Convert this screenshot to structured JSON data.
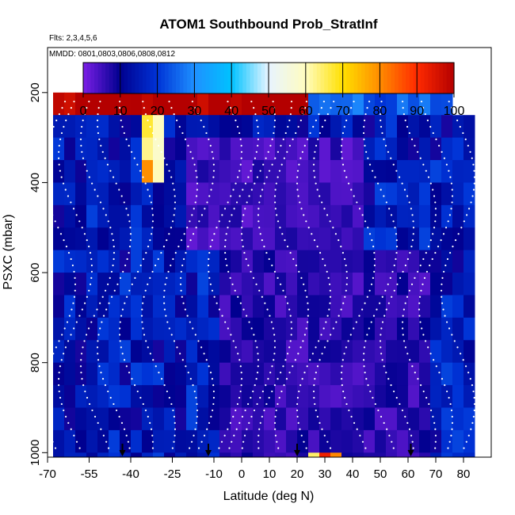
{
  "chart_data": {
    "type": "heatmap",
    "title": "ATOM1 Southbound Prob_StratInf",
    "notes": {
      "flights": "Flts: 2,3,4,5,6",
      "dates": "MMDD: 0801,0803,0806,0808,0812"
    },
    "xlabel": "Latitude (deg N)",
    "ylabel": "PSXC (mbar)",
    "xlim": [
      -70,
      90
    ],
    "ylim": [
      1010,
      100
    ],
    "x_ticks": [
      -70,
      -55,
      -40,
      -25,
      -10,
      0,
      10,
      20,
      30,
      40,
      50,
      60,
      70,
      80
    ],
    "y_ticks": [
      200,
      400,
      600,
      800,
      1000
    ],
    "colorbar": {
      "range": [
        0,
        100
      ],
      "ticks": [
        0,
        10,
        20,
        30,
        40,
        50,
        60,
        70,
        80,
        90,
        100
      ],
      "colors": [
        "#7b1fe6",
        "#00008f",
        "#0033d6",
        "#1e90ff",
        "#00c3ff",
        "#e8f4ff",
        "#fffcc0",
        "#ffe000",
        "#ff8c00",
        "#ff2a00",
        "#b40000"
      ]
    },
    "profile_markers_latitude": [
      -43,
      -12,
      20,
      61
    ],
    "grid_lat_bins": [
      -68,
      -64,
      -60,
      -56,
      -52,
      -48,
      -44,
      -40,
      -36,
      -32,
      -28,
      -24,
      -20,
      -16,
      -12,
      -8,
      -4,
      0,
      4,
      8,
      12,
      16,
      20,
      24,
      28,
      32,
      36,
      40,
      44,
      48,
      52,
      56,
      60,
      64,
      68,
      72,
      76,
      80
    ],
    "grid_pressure_bins": [
      150,
      200,
      250,
      300,
      350,
      400,
      450,
      500,
      550,
      600,
      650,
      700,
      750,
      800,
      850,
      900,
      950,
      1000
    ],
    "cells": [
      [
        null,
        null,
        null,
        null,
        null,
        null,
        null,
        null,
        null,
        null,
        null,
        null,
        null,
        null,
        null,
        null,
        null,
        null,
        null,
        null,
        null,
        null,
        null,
        null,
        null,
        null,
        null,
        null,
        null,
        null,
        null,
        null,
        null,
        null,
        null,
        null,
        null,
        null
      ],
      [
        null,
        null,
        null,
        null,
        null,
        null,
        null,
        null,
        null,
        null,
        null,
        null,
        null,
        null,
        null,
        null,
        null,
        null,
        null,
        null,
        null,
        null,
        null,
        null,
        null,
        null,
        null,
        null,
        null,
        null,
        null,
        null,
        null,
        null,
        null,
        null,
        null,
        null
      ],
      [
        null,
        null,
        null,
        null,
        null,
        null,
        null,
        null,
        null,
        null,
        null,
        null,
        null,
        null,
        null,
        null,
        null,
        null,
        null,
        null,
        null,
        null,
        null,
        null,
        null,
        null,
        null,
        null,
        null,
        null,
        null,
        null,
        null,
        null,
        null,
        null,
        null,
        null
      ],
      [
        null,
        null,
        null,
        null,
        null,
        null,
        null,
        null,
        null,
        null,
        null,
        null,
        null,
        null,
        null,
        null,
        null,
        null,
        null,
        null,
        null,
        null,
        null,
        null,
        null,
        null,
        null,
        null,
        null,
        null,
        null,
        null,
        null,
        null,
        null,
        null,
        null,
        null
      ],
      [
        null,
        null,
        null,
        null,
        null,
        null,
        null,
        null,
        null,
        null,
        null,
        null,
        null,
        null,
        null,
        null,
        null,
        null,
        null,
        null,
        null,
        null,
        null,
        null,
        null,
        null,
        null,
        null,
        null,
        null,
        null,
        null,
        null,
        null,
        null,
        null,
        null,
        null
      ],
      [
        null,
        null,
        null,
        null,
        null,
        null,
        null,
        null,
        null,
        null,
        null,
        null,
        null,
        null,
        null,
        null,
        null,
        null,
        null,
        null,
        null,
        null,
        null,
        null,
        null,
        null,
        null,
        null,
        null,
        null,
        null,
        null,
        null,
        null,
        null,
        null,
        null,
        null
      ],
      [
        null,
        null,
        null,
        null,
        null,
        null,
        null,
        null,
        null,
        null,
        null,
        null,
        null,
        null,
        null,
        null,
        null,
        null,
        null,
        null,
        null,
        null,
        null,
        null,
        null,
        null,
        null,
        null,
        null,
        null,
        null,
        null,
        null,
        null,
        null,
        null,
        null,
        null
      ],
      [
        null,
        null,
        null,
        null,
        null,
        null,
        null,
        null,
        null,
        null,
        null,
        null,
        null,
        null,
        null,
        null,
        null,
        null,
        null,
        null,
        null,
        null,
        null,
        null,
        null,
        null,
        null,
        null,
        null,
        null,
        null,
        null,
        null,
        null,
        null,
        null,
        null,
        null
      ],
      [
        null,
        null,
        null,
        null,
        null,
        null,
        null,
        null,
        null,
        null,
        null,
        null,
        null,
        null,
        null,
        null,
        null,
        null,
        null,
        null,
        null,
        null,
        null,
        null,
        null,
        null,
        null,
        null,
        null,
        null,
        null,
        null,
        null,
        null,
        null,
        null,
        null,
        null
      ],
      [
        null,
        null,
        null,
        null,
        null,
        null,
        null,
        null,
        null,
        null,
        null,
        null,
        null,
        null,
        null,
        null,
        null,
        null,
        null,
        null,
        null,
        null,
        null,
        null,
        null,
        null,
        null,
        null,
        null,
        null,
        null,
        null,
        null,
        null,
        null,
        null,
        null,
        null
      ],
      [
        null,
        null,
        null,
        null,
        null,
        null,
        null,
        null,
        null,
        null,
        null,
        null,
        null,
        null,
        null,
        null,
        null,
        null,
        null,
        null,
        null,
        null,
        null,
        null,
        null,
        null,
        null,
        null,
        null,
        null,
        null,
        null,
        null,
        null,
        null,
        null,
        null,
        null
      ],
      [
        null,
        null,
        null,
        null,
        null,
        null,
        null,
        null,
        null,
        null,
        null,
        null,
        null,
        null,
        null,
        null,
        null,
        null,
        null,
        null,
        null,
        null,
        null,
        null,
        null,
        null,
        null,
        null,
        null,
        null,
        null,
        null,
        null,
        null,
        null,
        null,
        null,
        null
      ],
      [
        null,
        null,
        null,
        null,
        null,
        null,
        null,
        null,
        null,
        null,
        null,
        null,
        null,
        null,
        null,
        null,
        null,
        null,
        null,
        null,
        null,
        null,
        null,
        null,
        null,
        null,
        null,
        null,
        null,
        null,
        null,
        null,
        null,
        null,
        null,
        null,
        null,
        null
      ],
      [
        null,
        null,
        null,
        null,
        null,
        null,
        null,
        null,
        null,
        null,
        null,
        null,
        null,
        null,
        null,
        null,
        null,
        null,
        null,
        null,
        null,
        null,
        null,
        null,
        null,
        null,
        null,
        null,
        null,
        null,
        null,
        null,
        null,
        null,
        null,
        null,
        null,
        null
      ],
      [
        null,
        null,
        null,
        null,
        null,
        null,
        null,
        null,
        null,
        null,
        null,
        null,
        null,
        null,
        null,
        null,
        null,
        null,
        null,
        null,
        null,
        null,
        null,
        null,
        null,
        null,
        null,
        null,
        null,
        null,
        null,
        null,
        null,
        null,
        null,
        null,
        null,
        null
      ],
      [
        null,
        null,
        null,
        null,
        null,
        null,
        null,
        null,
        null,
        null,
        null,
        null,
        null,
        null,
        null,
        null,
        null,
        null,
        null,
        null,
        null,
        null,
        null,
        null,
        null,
        null,
        null,
        null,
        null,
        null,
        null,
        null,
        null,
        null,
        null,
        null,
        null,
        null
      ],
      [
        null,
        null,
        null,
        null,
        null,
        null,
        null,
        null,
        null,
        null,
        null,
        null,
        null,
        null,
        null,
        null,
        null,
        null,
        null,
        null,
        null,
        null,
        null,
        null,
        null,
        null,
        null,
        null,
        null,
        null,
        null,
        null,
        null,
        null,
        null,
        null,
        null,
        null
      ],
      [
        null,
        null,
        null,
        null,
        null,
        null,
        null,
        null,
        null,
        null,
        null,
        null,
        null,
        null,
        null,
        null,
        null,
        null,
        null,
        null,
        null,
        null,
        null,
        null,
        null,
        null,
        null,
        null,
        null,
        null,
        null,
        null,
        null,
        null,
        null,
        null,
        null,
        null
      ]
    ]
  }
}
